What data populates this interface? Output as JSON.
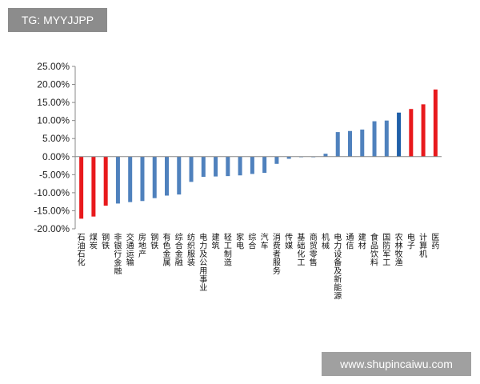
{
  "watermark_tag": "TG: MYYJJPP",
  "site_url": "www.shupincaiwu.com",
  "colors": {
    "blue": "#4f81bd",
    "red": "#e8191c",
    "dark_blue": "#1f5fa8"
  },
  "chart_data": {
    "type": "bar",
    "title": "",
    "xlabel": "",
    "ylabel": "",
    "ylim": [
      -20,
      25
    ],
    "yticks": [
      25,
      20,
      15,
      10,
      5,
      0,
      -5,
      -10,
      -15,
      -20
    ],
    "ytick_labels": [
      "25.00%",
      "20.00%",
      "15.00%",
      "10.00%",
      "5.00%",
      "0.00%",
      "-5.00%",
      "-10.00%",
      "-15.00%",
      "-20.00%"
    ],
    "categories": [
      "石油石化",
      "煤炭",
      "钢铁",
      "非银行金融",
      "交通运输",
      "房地产",
      "钢铁",
      "有色金属",
      "综合金融",
      "纺织服装",
      "电力及公用事业",
      "建筑",
      "轻工制造",
      "家电",
      "综合",
      "汽车",
      "消费者服务",
      "传媒",
      "基础化工",
      "商贸零售",
      "机械",
      "电力设备及新能源",
      "通信",
      "建材",
      "食品饮料",
      "国防军工",
      "农林牧渔",
      "电子",
      "计算机",
      "医药"
    ],
    "values": [
      -17.2,
      -16.6,
      -13.6,
      -13.0,
      -12.6,
      -12.3,
      -11.5,
      -10.8,
      -10.5,
      -7.0,
      -5.6,
      -5.5,
      -5.4,
      -5.2,
      -4.8,
      -4.5,
      -2.0,
      -0.6,
      -0.1,
      -0.1,
      0.8,
      6.8,
      7.1,
      7.5,
      9.8,
      10.0,
      12.2,
      13.2,
      14.5,
      18.6
    ],
    "bar_colors": [
      "red",
      "red",
      "red",
      "blue",
      "blue",
      "blue",
      "blue",
      "blue",
      "blue",
      "blue",
      "blue",
      "blue",
      "blue",
      "blue",
      "blue",
      "blue",
      "blue",
      "blue",
      "blue",
      "blue",
      "blue",
      "blue",
      "blue",
      "blue",
      "blue",
      "blue",
      "dark_blue",
      "red",
      "red",
      "red"
    ]
  }
}
